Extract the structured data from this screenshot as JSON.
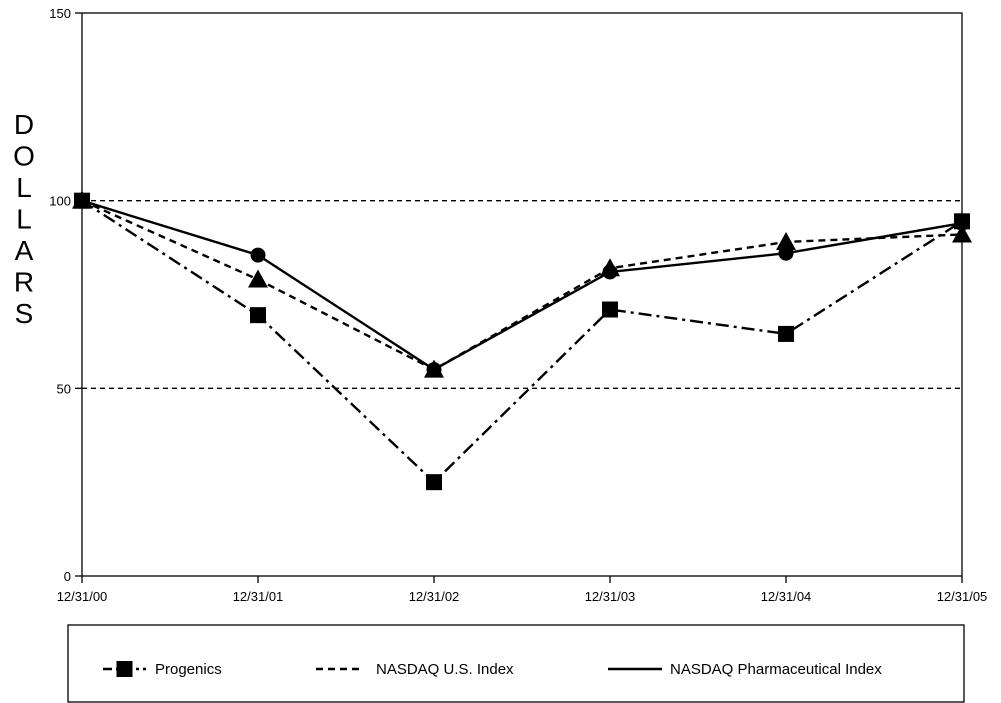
{
  "chart_data": {
    "type": "line",
    "title": "",
    "xlabel": "",
    "ylabel": "DOLLARS",
    "categories": [
      "12/31/00",
      "12/31/01",
      "12/31/02",
      "12/31/03",
      "12/31/04",
      "12/31/05"
    ],
    "ylim": [
      0,
      150
    ],
    "yticks": [
      0,
      50,
      100,
      150
    ],
    "gridlines": [
      50,
      100
    ],
    "grid": "dashed at 50 and 100",
    "legend_position": "bottom",
    "series": [
      {
        "name": "Progenics",
        "values": [
          100,
          69.5,
          25,
          71,
          64.5,
          94.5
        ],
        "line_style": "dash-dot",
        "marker": "square",
        "color": "#000000"
      },
      {
        "name": "NASDAQ U.S. Index",
        "values": [
          100,
          79,
          55,
          82,
          89,
          91
        ],
        "line_style": "dashed",
        "marker": "triangle",
        "color": "#000000"
      },
      {
        "name": "NASDAQ Pharmaceutical Index",
        "values": [
          100,
          85.5,
          55,
          81,
          86,
          94
        ],
        "line_style": "solid",
        "marker": "circle",
        "color": "#000000"
      }
    ]
  }
}
